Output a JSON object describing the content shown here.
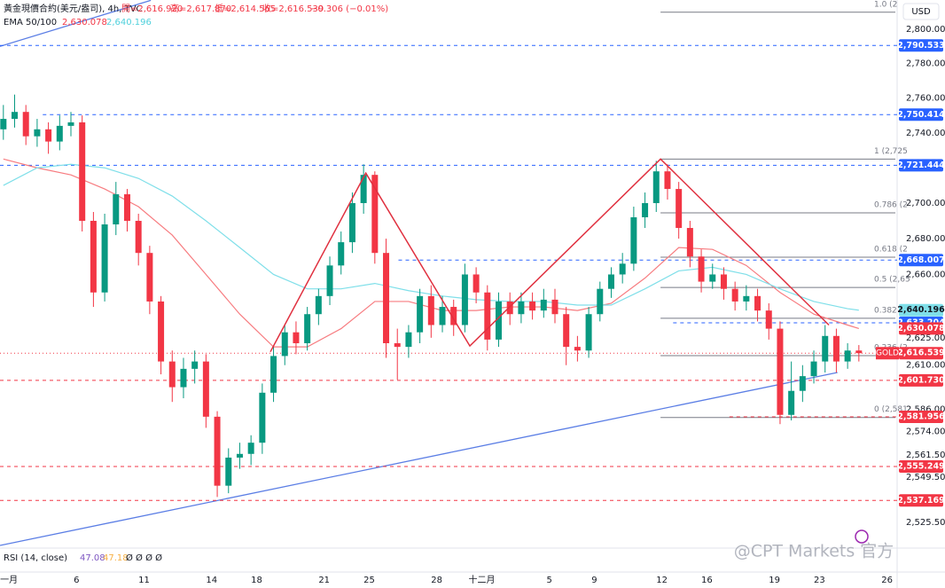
{
  "chart_data": {
    "type": "candlestick",
    "header": {
      "title": "黃金現價合約(美元/盎司), 4h, TVC",
      "open": "開=2,616.920",
      "high": "高=2,617.870",
      "low": "低=2,614.565",
      "close": "收=2,616.539",
      "change": "−0.306 (−0.01%)"
    },
    "ema_legend": {
      "name": "EMA 50/100",
      "v50": "2,630.078",
      "v100": "2,640.196"
    },
    "rsi_legend": {
      "name": "RSI (14, close)",
      "v1": "47.08",
      "v2": "47.18",
      "rest": "Ø Ø Ø Ø"
    },
    "currency": "USD",
    "watermark": "@CPT Markets 官方",
    "log_scale": true,
    "up_color": "#089981",
    "down_color": "#f23645",
    "xlim": [
      -0.4,
      39.45
    ],
    "ylim": [
      2512,
      2817.2
    ],
    "xticks": [
      {
        "value": 0,
        "label": "一月"
      },
      {
        "value": 3,
        "label": "6"
      },
      {
        "value": 6,
        "label": "11"
      },
      {
        "value": 9,
        "label": "14"
      },
      {
        "value": 11,
        "label": "18"
      },
      {
        "value": 14,
        "label": "21"
      },
      {
        "value": 16,
        "label": "25"
      },
      {
        "value": 19,
        "label": "28"
      },
      {
        "value": 21,
        "label": "十二月"
      },
      {
        "value": 24,
        "label": "5"
      },
      {
        "value": 26,
        "label": "9"
      },
      {
        "value": 29,
        "label": "12"
      },
      {
        "value": 31,
        "label": "16"
      },
      {
        "value": 34,
        "label": "19"
      },
      {
        "value": 36,
        "label": "23"
      },
      {
        "value": 39,
        "label": "26"
      }
    ],
    "yticks": [
      {
        "value": 2800,
        "label": "2,800.000"
      },
      {
        "value": 2780,
        "label": "2,780.000"
      },
      {
        "value": 2760,
        "label": "2,760.000"
      },
      {
        "value": 2740,
        "label": "2,740.000"
      },
      {
        "value": 2700,
        "label": "2,700.000"
      },
      {
        "value": 2680,
        "label": "2,680.000"
      },
      {
        "value": 2660,
        "label": "2,660.000"
      },
      {
        "value": 2625,
        "label": "2,625.000"
      },
      {
        "value": 2610,
        "label": "2,610.000"
      },
      {
        "value": 2586,
        "label": "2,586.000"
      },
      {
        "value": 2574,
        "label": "2,574.000"
      },
      {
        "value": 2561.5,
        "label": "2,561.500"
      },
      {
        "value": 2549.5,
        "label": "2,549.500"
      },
      {
        "value": 2525.5,
        "label": "2,525.500"
      }
    ],
    "candles": {
      "t": [
        -0.25,
        0.25,
        0.75,
        1.25,
        1.75,
        2.25,
        2.75,
        3.25,
        3.75,
        4.25,
        4.75,
        5.25,
        5.75,
        6.25,
        6.75,
        7.25,
        7.75,
        8.25,
        8.75,
        9.25,
        9.75,
        10.25,
        10.75,
        11.25,
        11.75,
        12.25,
        12.75,
        13.25,
        13.75,
        14.25,
        14.75,
        15.25,
        15.75,
        16.25,
        16.75,
        17.25,
        17.75,
        18.25,
        18.75,
        19.25,
        19.75,
        20.25,
        20.75,
        21.25,
        21.75,
        22.25,
        22.75,
        23.25,
        23.75,
        24.25,
        24.75,
        25.25,
        25.75,
        26.25,
        26.75,
        27.25,
        27.75,
        28.25,
        28.75,
        29.25,
        29.75,
        30.25,
        30.75,
        31.25,
        31.75,
        32.25,
        32.75,
        33.25,
        33.75,
        34.25,
        34.75,
        35.25,
        35.75,
        36.25,
        36.75,
        37.25,
        37.75
      ],
      "open": [
        2742,
        2748,
        2752,
        2738,
        2742,
        2735,
        2744,
        2746,
        2690,
        2650,
        2688,
        2705,
        2690,
        2672,
        2645,
        2612,
        2598,
        2608,
        2612,
        2582,
        2545,
        2560,
        2562,
        2568,
        2595,
        2615,
        2628,
        2622,
        2638,
        2648,
        2665,
        2678,
        2700,
        2716,
        2672,
        2622,
        2620,
        2628,
        2648,
        2632,
        2642,
        2632,
        2660,
        2650,
        2624,
        2645,
        2638,
        2645,
        2640,
        2646,
        2638,
        2620,
        2618,
        2638,
        2652,
        2660,
        2666,
        2692,
        2700,
        2718,
        2708,
        2686,
        2670,
        2656,
        2660,
        2652,
        2645,
        2648,
        2640,
        2630,
        2583,
        2596,
        2604,
        2612,
        2626,
        2612,
        2618
      ],
      "high": [
        2756,
        2762,
        2756,
        2748,
        2746,
        2750,
        2752,
        2750,
        2695,
        2694,
        2712,
        2708,
        2694,
        2676,
        2648,
        2618,
        2614,
        2618,
        2616,
        2585,
        2565,
        2568,
        2572,
        2600,
        2620,
        2632,
        2634,
        2642,
        2652,
        2670,
        2684,
        2706,
        2722,
        2718,
        2680,
        2630,
        2632,
        2652,
        2654,
        2648,
        2646,
        2666,
        2664,
        2654,
        2650,
        2650,
        2650,
        2650,
        2652,
        2652,
        2642,
        2626,
        2642,
        2656,
        2664,
        2672,
        2698,
        2706,
        2724,
        2722,
        2712,
        2690,
        2674,
        2666,
        2664,
        2656,
        2654,
        2652,
        2644,
        2634,
        2612,
        2610,
        2618,
        2632,
        2630,
        2622,
        2621
      ],
      "low": [
        2736,
        2743,
        2733,
        2732,
        2728,
        2730,
        2738,
        2684,
        2642,
        2645,
        2682,
        2684,
        2665,
        2638,
        2605,
        2590,
        2592,
        2600,
        2576,
        2539,
        2541,
        2554,
        2556,
        2562,
        2590,
        2610,
        2616,
        2618,
        2632,
        2643,
        2660,
        2672,
        2694,
        2666,
        2614,
        2602,
        2614,
        2622,
        2625,
        2628,
        2626,
        2628,
        2644,
        2618,
        2620,
        2632,
        2633,
        2635,
        2636,
        2633,
        2610,
        2612,
        2614,
        2634,
        2647,
        2655,
        2662,
        2686,
        2695,
        2702,
        2680,
        2664,
        2650,
        2652,
        2646,
        2640,
        2640,
        2634,
        2624,
        2578,
        2580,
        2590,
        2600,
        2606,
        2606,
        2608,
        2612
      ],
      "close": [
        2748,
        2752,
        2738,
        2742,
        2735,
        2744,
        2746,
        2690,
        2650,
        2688,
        2705,
        2690,
        2672,
        2645,
        2612,
        2598,
        2608,
        2612,
        2582,
        2545,
        2560,
        2562,
        2568,
        2595,
        2615,
        2628,
        2622,
        2638,
        2648,
        2665,
        2678,
        2700,
        2716,
        2672,
        2622,
        2620,
        2628,
        2648,
        2632,
        2642,
        2632,
        2660,
        2650,
        2624,
        2645,
        2638,
        2645,
        2640,
        2646,
        2638,
        2620,
        2618,
        2638,
        2652,
        2660,
        2666,
        2692,
        2700,
        2718,
        2708,
        2686,
        2670,
        2656,
        2660,
        2652,
        2645,
        2648,
        2640,
        2630,
        2583,
        2596,
        2604,
        2612,
        2626,
        2612,
        2618,
        2616.539
      ]
    },
    "ema": [
      {
        "color": "#f77c80",
        "t": [
          -0.25,
          1.25,
          2.75,
          4.25,
          5.75,
          7.25,
          8.75,
          10.25,
          11.75,
          13.25,
          14.75,
          16.25,
          17.75,
          19.25,
          20.75,
          22.25,
          23.75,
          25.25,
          26.75,
          28.25,
          29.75,
          31.25,
          32.75,
          34.25,
          35.75,
          37.25,
          37.75
        ],
        "values": [
          2725,
          2720,
          2716,
          2708,
          2698,
          2682,
          2660,
          2638,
          2620,
          2620,
          2630,
          2645,
          2645,
          2640,
          2640,
          2642,
          2642,
          2640,
          2644,
          2658,
          2675,
          2674,
          2665,
          2650,
          2638,
          2632,
          2630.078
        ]
      },
      {
        "color": "#7fdfe9",
        "t": [
          -0.25,
          1.25,
          2.75,
          4.25,
          5.75,
          7.25,
          8.75,
          10.25,
          11.75,
          13.25,
          14.75,
          16.25,
          17.75,
          19.25,
          20.75,
          22.25,
          23.75,
          25.25,
          26.75,
          28.25,
          29.75,
          31.25,
          32.75,
          34.25,
          35.75,
          37.25,
          37.75
        ],
        "values": [
          2710,
          2720,
          2722,
          2720,
          2714,
          2704,
          2690,
          2675,
          2660,
          2652,
          2652,
          2655,
          2651,
          2648,
          2646,
          2645,
          2645,
          2643,
          2643,
          2652,
          2662,
          2664,
          2660,
          2652,
          2645,
          2641,
          2640.196
        ]
      }
    ],
    "levels": [
      {
        "value": 2790.533,
        "label": "2,790.533",
        "color": "#2962ff",
        "from": -0.4,
        "dash": "4 4",
        "line": true
      },
      {
        "value": 2750.414,
        "label": "2,750.414",
        "color": "#2962ff",
        "from": 1.5,
        "dash": "4 4",
        "line": true
      },
      {
        "value": 2721.444,
        "label": "2,721.444",
        "color": "#2962ff",
        "from": -0.4,
        "dash": "4 4",
        "line": true
      },
      {
        "value": 2668.007,
        "label": "2,668.007",
        "color": "#2962ff",
        "from": 17.3,
        "dash": "4 4",
        "line": true
      },
      {
        "value": 2640.196,
        "label": "2,640.196",
        "color": "#7fdfe9",
        "from": 37.75,
        "dash": "",
        "line": false
      },
      {
        "value": 2633.204,
        "label": "2,633.204",
        "color": "#2962ff",
        "from": 29.5,
        "dash": "4 4",
        "line": true
      },
      {
        "value": 2630.078,
        "label": "2,630.078",
        "color": "#f23645",
        "from": 37.75,
        "dash": "",
        "line": false
      },
      {
        "value": 2616.539,
        "label": "2,616.539",
        "color": "#f23645",
        "from": -0.4,
        "dash": "1 3",
        "line": true,
        "tag": "GOLD"
      },
      {
        "value": 2601.73,
        "label": "2,601.730",
        "color": "#f23645",
        "from": -0.4,
        "dash": "4 4",
        "line": true
      },
      {
        "value": 2581.956,
        "label": "2,581.956",
        "color": "#f23645",
        "from": 32,
        "dash": "4 4",
        "line": true
      },
      {
        "value": 2555.249,
        "label": "2,555.249",
        "color": "#f23645",
        "from": -0.4,
        "dash": "4 4",
        "line": true
      },
      {
        "value": 2537.169,
        "label": "2,537.169",
        "color": "#f23645",
        "from": -0.4,
        "dash": "4 4",
        "line": true
      }
    ],
    "trendlines": [
      {
        "color": "#5b7ee5",
        "t": [
          -0.4,
          6.3
        ],
        "values": [
          2790,
          2817
        ]
      },
      {
        "color": "#5b7ee5",
        "t": [
          -0.4,
          36.8
        ],
        "values": [
          2513.4,
          2606
        ]
      }
    ],
    "zigzag": {
      "color": "#e0303f",
      "t": [
        11.61,
        15.85,
        20.47,
        28.94,
        36.42
      ],
      "values": [
        2617.3,
        2717,
        2620.5,
        2725,
        2632
      ]
    },
    "fib": {
      "color": "#787b86",
      "from": 28.94,
      "levels": [
        {
          "value": 2810,
          "label": "1.0 (2"
        },
        {
          "value": 2725,
          "label": "1 (2,725"
        },
        {
          "value": 2694.5,
          "label": "0.786 (2"
        },
        {
          "value": 2669.6,
          "label": "0.618 (2"
        },
        {
          "value": 2652.8,
          "label": "0.5 (2,65"
        },
        {
          "value": 2635.7,
          "label": "0.382 (2"
        },
        {
          "value": 2615.2,
          "label": "0.236 (2"
        },
        {
          "value": 2581.6,
          "label": "0 (2,581"
        }
      ]
    }
  }
}
